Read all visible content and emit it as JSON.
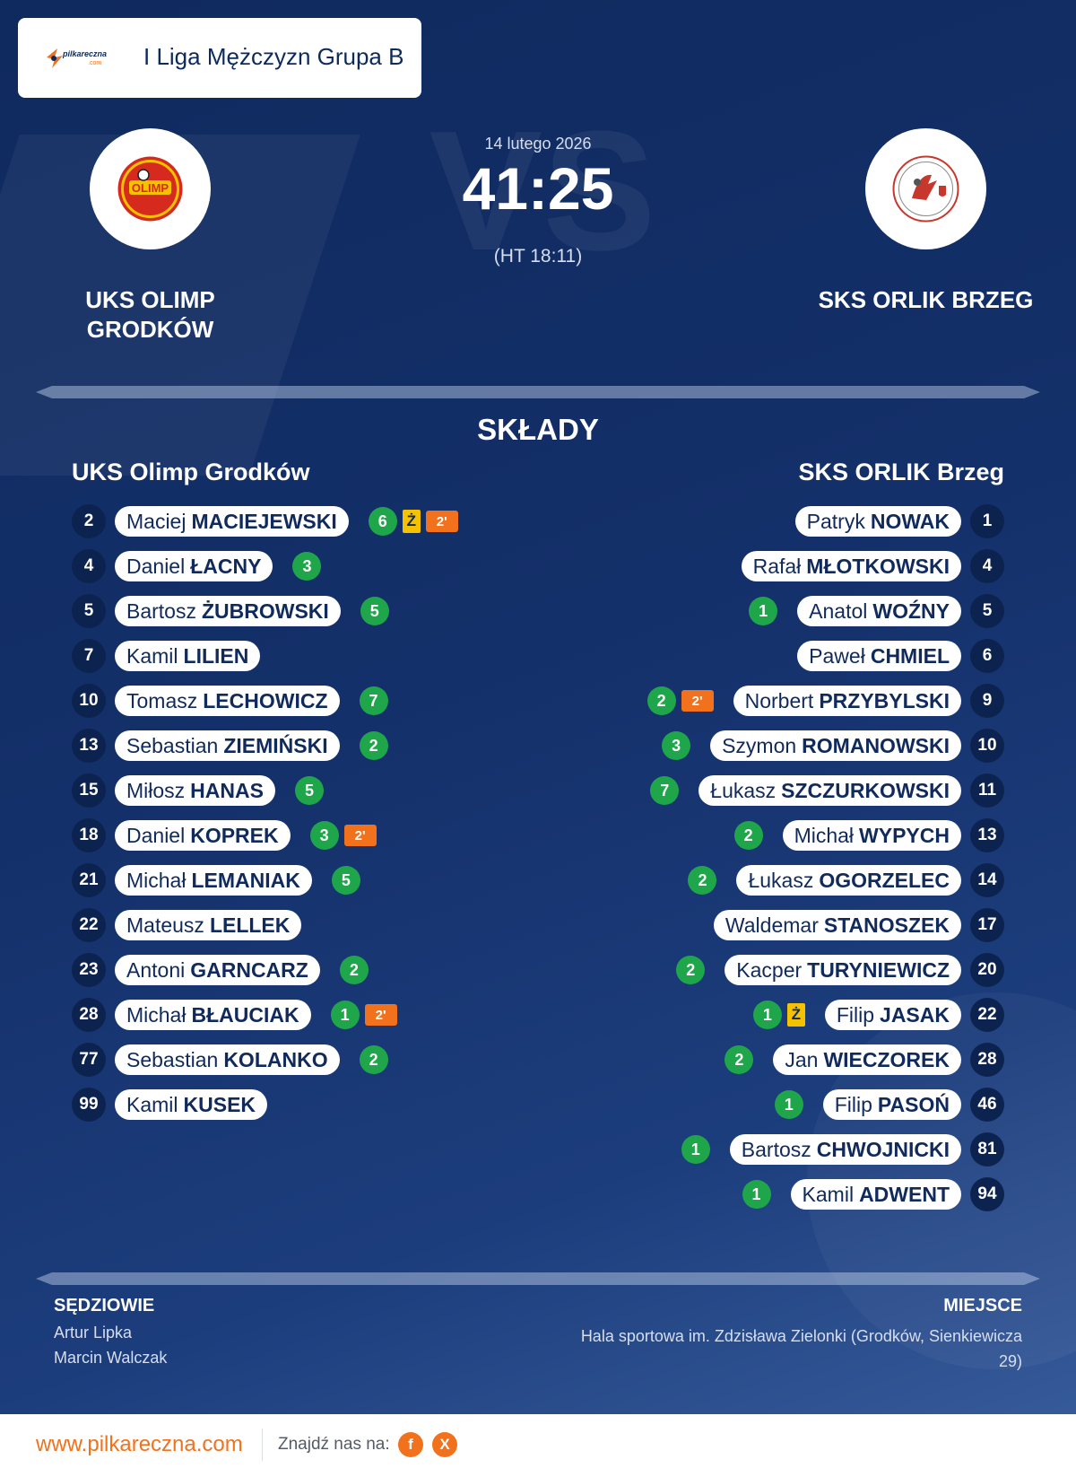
{
  "header": {
    "league": "I Liga Mężczyzn Grupa B",
    "logo_text": "pilkareczna",
    "logo_subtext": ".com"
  },
  "match": {
    "date": "14 lutego 2026",
    "score": "41:25",
    "halftime": "(HT 18:11)",
    "home_team": "UKS OLIMP GRODKÓW",
    "away_team": "SKS ORLIK BRZEG",
    "home_logo_text": "OLIMP"
  },
  "squads": {
    "title": "SKŁADY",
    "home": {
      "name": "UKS Olimp Grodków",
      "players": [
        {
          "number": "2",
          "first": "Maciej",
          "last": "MACIEJEWSKI",
          "goals": "6",
          "yellow": "Ż",
          "suspension": "2'"
        },
        {
          "number": "4",
          "first": "Daniel",
          "last": "ŁACNY",
          "goals": "3"
        },
        {
          "number": "5",
          "first": "Bartosz",
          "last": "ŻUBROWSKI",
          "goals": "5"
        },
        {
          "number": "7",
          "first": "Kamil",
          "last": "LILIEN"
        },
        {
          "number": "10",
          "first": "Tomasz",
          "last": "LECHOWICZ",
          "goals": "7"
        },
        {
          "number": "13",
          "first": "Sebastian",
          "last": "ZIEMIŃSKI",
          "goals": "2"
        },
        {
          "number": "15",
          "first": "Miłosz",
          "last": "HANAS",
          "goals": "5"
        },
        {
          "number": "18",
          "first": "Daniel",
          "last": "KOPREK",
          "goals": "3",
          "suspension": "2'"
        },
        {
          "number": "21",
          "first": "Michał",
          "last": "LEMANIAK",
          "goals": "5"
        },
        {
          "number": "22",
          "first": "Mateusz",
          "last": "LELLEK"
        },
        {
          "number": "23",
          "first": "Antoni",
          "last": "GARNCARZ",
          "goals": "2"
        },
        {
          "number": "28",
          "first": "Michał",
          "last": "BŁAUCIAK",
          "goals": "1",
          "suspension": "2'"
        },
        {
          "number": "77",
          "first": "Sebastian",
          "last": "KOLANKO",
          "goals": "2"
        },
        {
          "number": "99",
          "first": "Kamil",
          "last": "KUSEK"
        }
      ]
    },
    "away": {
      "name": "SKS ORLIK Brzeg",
      "players": [
        {
          "number": "1",
          "first": "Patryk",
          "last": "NOWAK"
        },
        {
          "number": "4",
          "first": "Rafał",
          "last": "MŁOTKOWSKI"
        },
        {
          "number": "5",
          "first": "Anatol",
          "last": "WOŹNY",
          "goals": "1"
        },
        {
          "number": "6",
          "first": "Paweł",
          "last": "CHMIEL"
        },
        {
          "number": "9",
          "first": "Norbert",
          "last": "PRZYBYLSKI",
          "goals": "2",
          "suspension": "2'"
        },
        {
          "number": "10",
          "first": "Szymon",
          "last": "ROMANOWSKI",
          "goals": "3"
        },
        {
          "number": "11",
          "first": "Łukasz",
          "last": "SZCZURKOWSKI",
          "goals": "7"
        },
        {
          "number": "13",
          "first": "Michał",
          "last": "WYPYCH",
          "goals": "2"
        },
        {
          "number": "14",
          "first": "Łukasz",
          "last": "OGORZELEC",
          "goals": "2"
        },
        {
          "number": "17",
          "first": "Waldemar",
          "last": "STANOSZEK"
        },
        {
          "number": "20",
          "first": "Kacper",
          "last": "TURYNIEWICZ",
          "goals": "2"
        },
        {
          "number": "22",
          "first": "Filip",
          "last": "JASAK",
          "goals": "1",
          "yellow": "Ż"
        },
        {
          "number": "28",
          "first": "Jan",
          "last": "WIECZOREK",
          "goals": "2"
        },
        {
          "number": "46",
          "first": "Filip",
          "last": "PASOŃ",
          "goals": "1"
        },
        {
          "number": "81",
          "first": "Bartosz",
          "last": "CHWOJNICKI",
          "goals": "1"
        },
        {
          "number": "94",
          "first": "Kamil",
          "last": "ADWENT",
          "goals": "1"
        }
      ]
    }
  },
  "officials": {
    "title": "SĘDZIOWIE",
    "referee_1": "Artur Lipka",
    "referee_2": "Marcin Walczak"
  },
  "venue": {
    "title": "MIEJSCE",
    "value": "Hala sportowa im. Zdzisława Zielonki (Grodków, Sienkiewicza 29)"
  },
  "watermark": "VS",
  "footer": {
    "site": "www.pilkareczna.com",
    "find_us": "Znajdź nas na:",
    "facebook": "f",
    "x": "X"
  },
  "colors": {
    "background": "#14306a",
    "goal_badge": "#1fa64a",
    "yellow_card": "#f6c200",
    "suspension": "#f2711c",
    "accent": "#f2711c"
  },
  "icons": [
    "pilkareczna-logo",
    "olimp-crest",
    "orlik-crest",
    "facebook-icon",
    "x-icon"
  ]
}
